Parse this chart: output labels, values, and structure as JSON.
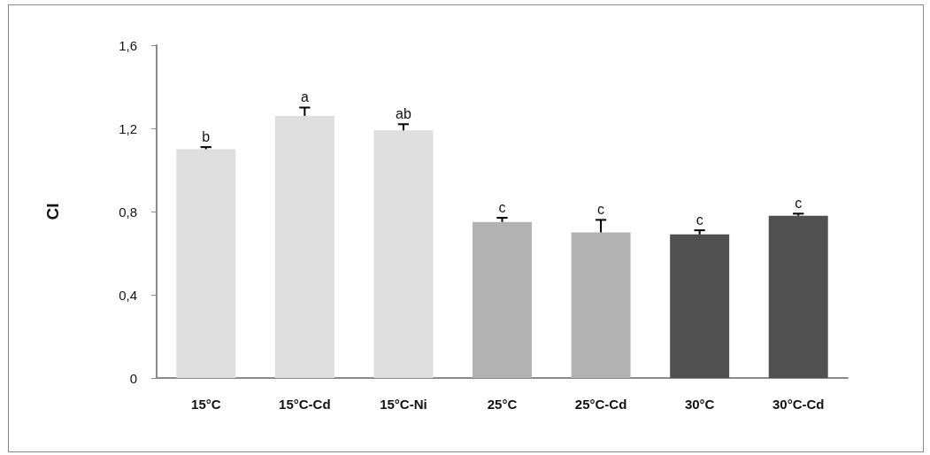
{
  "chart_data": {
    "type": "bar",
    "ylabel": "CI",
    "categories": [
      "15°C",
      "15°C-Cd",
      "15°C-Ni",
      "25°C",
      "25°C-Cd",
      "30°C",
      "30°C-Cd"
    ],
    "values": [
      1.1,
      1.26,
      1.19,
      0.75,
      0.7,
      0.69,
      0.78
    ],
    "colors": [
      "#dedede",
      "#dedede",
      "#dedede",
      "#b2b2b2",
      "#b2b2b2",
      "#505050",
      "#505050"
    ],
    "errors": [
      [
        1.1,
        1.11
      ],
      [
        1.26,
        1.3
      ],
      [
        1.19,
        1.22
      ],
      [
        0.75,
        0.77
      ],
      [
        0.7,
        0.76
      ],
      [
        0.69,
        0.71
      ],
      [
        0.78,
        0.79
      ]
    ],
    "ylim": [
      0,
      1.6
    ],
    "yticks": [
      0,
      {
        "value": 0.4,
        "label": "0,4"
      },
      {
        "value": 0.8,
        "label": "0,8"
      },
      {
        "value": 1.2,
        "label": "1,2"
      },
      {
        "value": 1.6,
        "label": "1,6"
      }
    ],
    "grid": false,
    "annotations": [
      {
        "text": "b",
        "x": "15°C",
        "y": 1.11
      },
      {
        "text": "a",
        "x": "15°C-Cd",
        "y": 1.3
      },
      {
        "text": "ab",
        "x": "15°C-Ni",
        "y": 1.22
      },
      {
        "text": "c",
        "x": "25°C",
        "y": 0.77
      },
      {
        "text": "c",
        "x": "25°C-Cd",
        "y": 0.76
      },
      {
        "text": "c",
        "x": "30°C",
        "y": 0.71
      },
      {
        "text": "c",
        "x": "30°C-Cd",
        "y": 0.79
      }
    ]
  }
}
